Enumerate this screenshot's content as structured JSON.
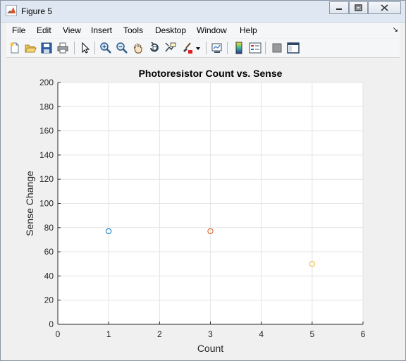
{
  "window": {
    "title": "Figure 5"
  },
  "menu": [
    "File",
    "Edit",
    "View",
    "Insert",
    "Tools",
    "Desktop",
    "Window",
    "Help"
  ],
  "toolbar": [
    "new-figure",
    "open-file",
    "save",
    "print",
    "edit-plot",
    "zoom-in",
    "zoom-out",
    "pan",
    "rotate-3d",
    "data-cursor",
    "brush",
    "brush-dropdown",
    "link-plot",
    "insert-colorbar",
    "insert-legend",
    "hide-plot-tools",
    "show-plot-tools"
  ],
  "chart_data": {
    "type": "scatter",
    "title": "Photoresistor Count vs. Sense",
    "xlabel": "Count",
    "ylabel": "Sense Change",
    "xlim": [
      0,
      6
    ],
    "ylim": [
      0,
      200
    ],
    "xticks": [
      0,
      1,
      2,
      3,
      4,
      5,
      6
    ],
    "yticks": [
      0,
      20,
      40,
      60,
      80,
      100,
      120,
      140,
      160,
      180,
      200
    ],
    "grid": true,
    "marker": "circle",
    "series": [
      {
        "x": [
          1
        ],
        "y": [
          77
        ],
        "color": "#0072bd"
      },
      {
        "x": [
          3
        ],
        "y": [
          77
        ],
        "color": "#d95319"
      },
      {
        "x": [
          5
        ],
        "y": [
          50
        ],
        "color": "#edb120"
      }
    ]
  }
}
